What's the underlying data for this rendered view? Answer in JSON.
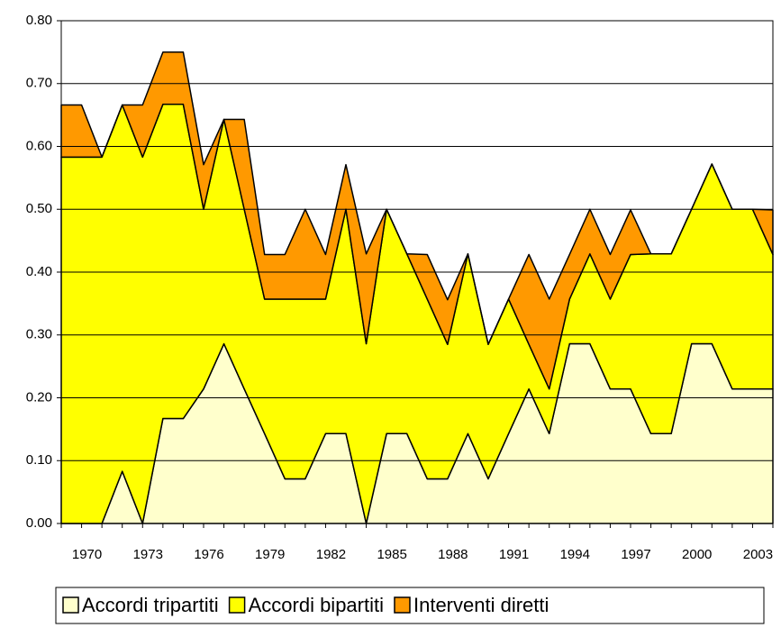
{
  "chart_data": {
    "type": "stacked-area",
    "categories": [
      null,
      "1970",
      null,
      null,
      "1973",
      null,
      null,
      "1976",
      null,
      null,
      "1979",
      null,
      null,
      "1982",
      null,
      null,
      "1985",
      null,
      null,
      "1988",
      null,
      null,
      "1991",
      null,
      null,
      "1994",
      null,
      null,
      "1997",
      null,
      null,
      "2000",
      null,
      null,
      "2003",
      null
    ],
    "series": [
      {
        "name": "Accordi tripartiti",
        "color": "#ffffcc",
        "values": [
          0,
          0,
          0,
          0.083,
          0,
          0.167,
          0.167,
          0.214,
          0.286,
          0.214,
          0.143,
          0.071,
          0.071,
          0.143,
          0.143,
          0,
          0.143,
          0.143,
          0.071,
          0.071,
          0.143,
          0.071,
          0.143,
          0.214,
          0.143,
          0.286,
          0.286,
          0.214,
          0.214,
          0.143,
          0.143,
          0.286,
          0.286,
          0.214,
          0.214,
          0.214
        ]
      },
      {
        "name": "Accordi bipartiti",
        "color": "#ffff00",
        "values": [
          0.583,
          0.583,
          0.583,
          0.583,
          0.583,
          0.5,
          0.5,
          0.286,
          0.357,
          0.286,
          0.214,
          0.286,
          0.286,
          0.214,
          0.357,
          0.286,
          0.357,
          0.286,
          0.286,
          0.214,
          0.286,
          0.214,
          0.214,
          0.071,
          0.071,
          0.071,
          0.143,
          0.143,
          0.214,
          0.286,
          0.286,
          0.214,
          0.286,
          0.286,
          0.286,
          0.214
        ]
      },
      {
        "name": "Interventi diretti",
        "color": "#ff9900",
        "values": [
          0.083,
          0.083,
          0,
          0,
          0.083,
          0.083,
          0.083,
          0.071,
          0,
          0.143,
          0.071,
          0.071,
          0.143,
          0.071,
          0.071,
          0.143,
          0,
          0,
          0.071,
          0.071,
          0,
          0,
          0,
          0.143,
          0.143,
          0.071,
          0.071,
          0.071,
          0.071,
          0,
          0,
          0,
          0,
          0,
          0,
          0.071
        ]
      }
    ],
    "ylim": [
      0,
      0.8
    ],
    "yticks": [
      {
        "value": 0,
        "label": "0.00"
      },
      {
        "value": 0.1,
        "label": "0.10"
      },
      {
        "value": 0.2,
        "label": "0.20"
      },
      {
        "value": 0.3,
        "label": "0.30"
      },
      {
        "value": 0.4,
        "label": "0.40"
      },
      {
        "value": 0.5,
        "label": "0.50"
      },
      {
        "value": 0.6,
        "label": "0.60"
      },
      {
        "value": 0.7,
        "label": "0.70"
      },
      {
        "value": 0.8,
        "label": "0.80"
      }
    ],
    "grid": true,
    "legend": "bottom"
  }
}
